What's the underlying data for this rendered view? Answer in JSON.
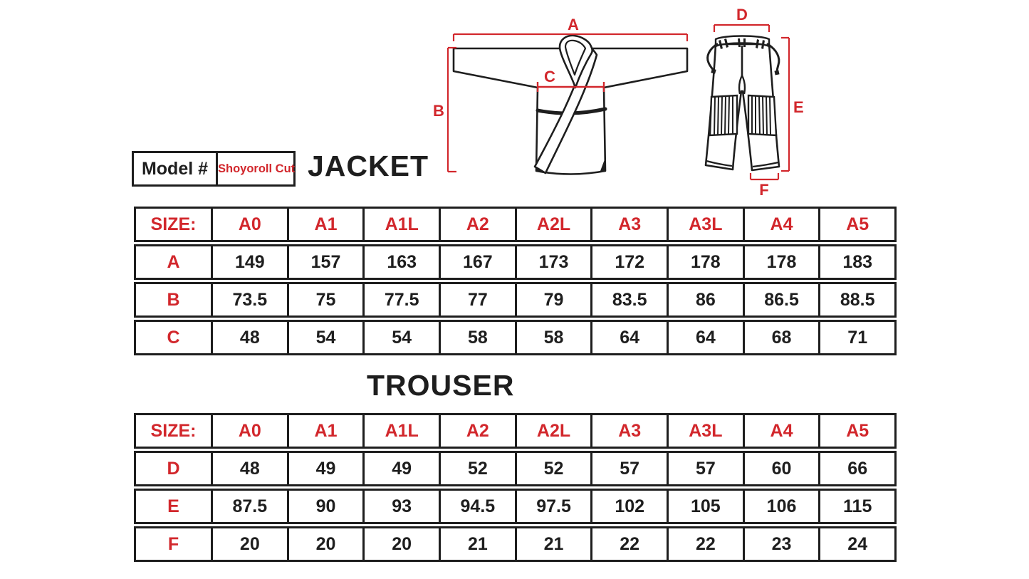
{
  "colors": {
    "accent_red": "#d2272c",
    "line_ink": "#1e1e1e",
    "background": "#ffffff"
  },
  "model": {
    "label": "Model #",
    "value": "Shoyoroll Cut"
  },
  "jacket": {
    "heading": "JACKET",
    "diagram": {
      "dim_a": "A",
      "dim_b": "B",
      "dim_c": "C"
    },
    "table": {
      "header": [
        "SIZE:",
        "A0",
        "A1",
        "A1L",
        "A2",
        "A2L",
        "A3",
        "A3L",
        "A4",
        "A5"
      ],
      "rows": [
        {
          "label": "A",
          "values": [
            "149",
            "157",
            "163",
            "167",
            "173",
            "172",
            "178",
            "178",
            "183"
          ]
        },
        {
          "label": "B",
          "values": [
            "73.5",
            "75",
            "77.5",
            "77",
            "79",
            "83.5",
            "86",
            "86.5",
            "88.5"
          ]
        },
        {
          "label": "C",
          "values": [
            "48",
            "54",
            "54",
            "58",
            "58",
            "64",
            "64",
            "68",
            "71"
          ]
        }
      ]
    }
  },
  "trouser": {
    "heading": "TROUSER",
    "diagram": {
      "dim_d": "D",
      "dim_e": "E",
      "dim_f": "F"
    },
    "table": {
      "header": [
        "SIZE:",
        "A0",
        "A1",
        "A1L",
        "A2",
        "A2L",
        "A3",
        "A3L",
        "A4",
        "A5"
      ],
      "rows": [
        {
          "label": "D",
          "values": [
            "48",
            "49",
            "49",
            "52",
            "52",
            "57",
            "57",
            "60",
            "66"
          ]
        },
        {
          "label": "E",
          "values": [
            "87.5",
            "90",
            "93",
            "94.5",
            "97.5",
            "102",
            "105",
            "106",
            "115"
          ]
        },
        {
          "label": "F",
          "values": [
            "20",
            "20",
            "20",
            "21",
            "21",
            "22",
            "22",
            "23",
            "24"
          ]
        }
      ]
    }
  }
}
